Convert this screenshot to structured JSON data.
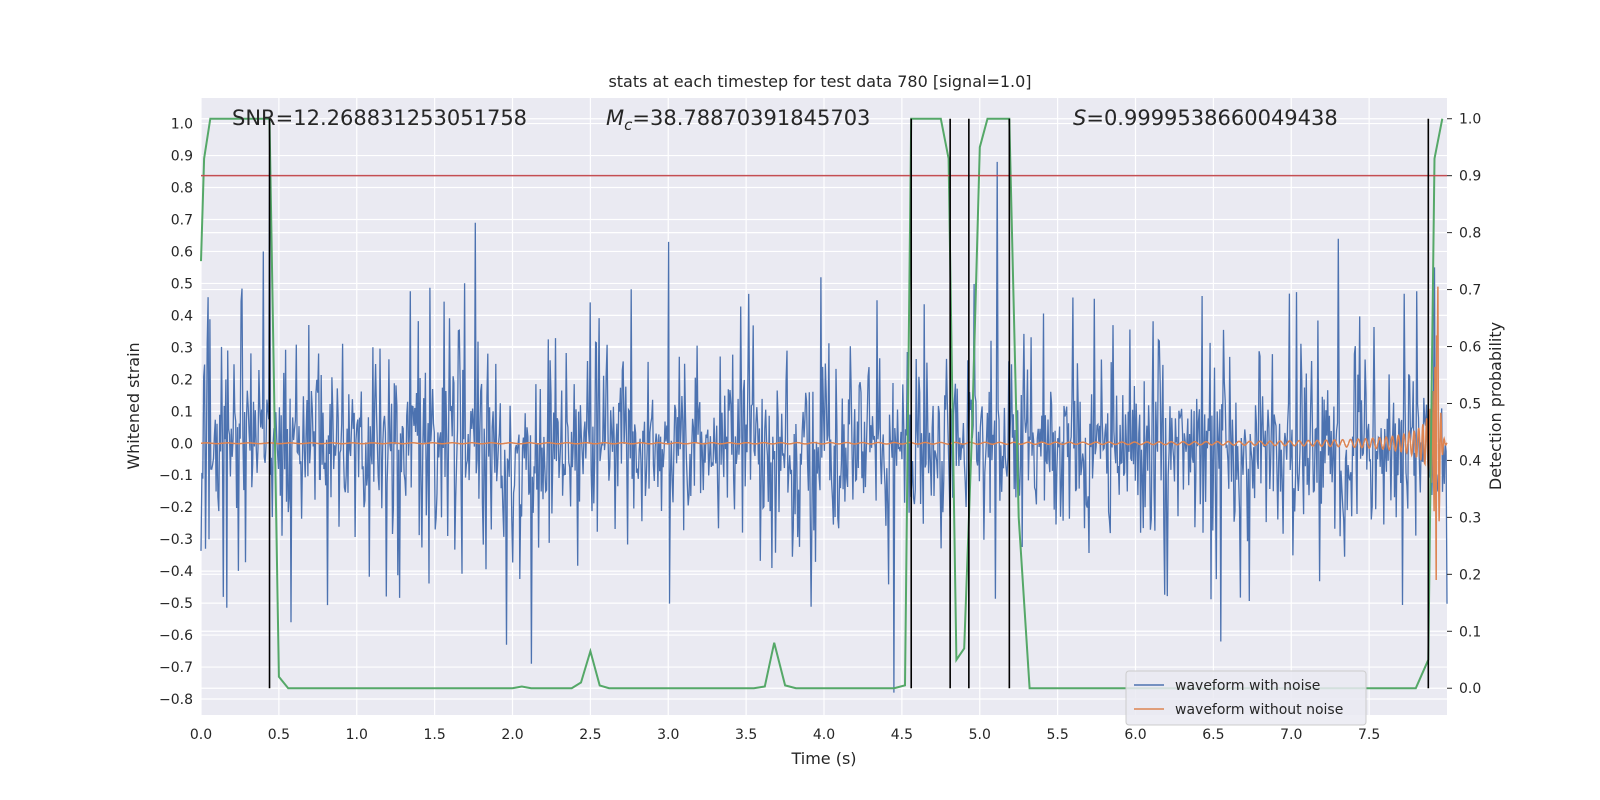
{
  "chart_data": {
    "type": "line",
    "title": "stats at each timestep for test data 780 [signal=1.0]",
    "xlabel": "Time (s)",
    "ylabel": "Whitened strain",
    "ylabel_right": "Detection probability",
    "xlim": [
      0.0,
      8.0
    ],
    "ylim": [
      -0.85,
      1.08
    ],
    "ylim_right": [
      -0.047,
      1.0364
    ],
    "xticks": [
      0.0,
      0.5,
      1.0,
      1.5,
      2.0,
      2.5,
      3.0,
      3.5,
      4.0,
      4.5,
      5.0,
      5.5,
      6.0,
      6.5,
      7.0,
      7.5
    ],
    "xtick_labels": [
      "0.0",
      "0.5",
      "1.0",
      "1.5",
      "2.0",
      "2.5",
      "3.0",
      "3.5",
      "4.0",
      "4.5",
      "5.0",
      "5.5",
      "6.0",
      "6.5",
      "7.0",
      "7.5"
    ],
    "yticks": [
      -0.8,
      -0.7,
      -0.6,
      -0.5,
      -0.4,
      -0.3,
      -0.2,
      -0.1,
      0.0,
      0.1,
      0.2,
      0.3,
      0.4,
      0.5,
      0.6,
      0.7,
      0.8,
      0.9,
      1.0
    ],
    "ytick_labels": [
      "−0.8",
      "−0.7",
      "−0.6",
      "−0.5",
      "−0.4",
      "−0.3",
      "−0.2",
      "−0.1",
      "0.0",
      "0.1",
      "0.2",
      "0.3",
      "0.4",
      "0.5",
      "0.6",
      "0.7",
      "0.8",
      "0.9",
      "1.0"
    ],
    "yticks_right": [
      0.0,
      0.1,
      0.2,
      0.3,
      0.4,
      0.5,
      0.6,
      0.7,
      0.8,
      0.9,
      1.0
    ],
    "ytick_labels_right": [
      "0.0",
      "0.1",
      "0.2",
      "0.3",
      "0.4",
      "0.5",
      "0.6",
      "0.7",
      "0.8",
      "0.9",
      "1.0"
    ],
    "annotations": {
      "snr": "SNR=12.268831253051758",
      "mc_symbol": "M",
      "mc_sub": "c",
      "mc_value": "=38.78870391845703",
      "s_symbol": "S",
      "s_value": "=0.9999538660049438"
    },
    "threshold": {
      "value": 0.9,
      "axis": "right",
      "color": "#c44e52"
    },
    "vertical_lines_x": [
      0.44,
      4.56,
      4.81,
      4.93,
      5.19,
      7.88
    ],
    "detection_probability": {
      "name": "detection probability",
      "color": "#55a868",
      "x": [
        0.0,
        0.02,
        0.06,
        0.1,
        0.44,
        0.5,
        0.56,
        0.6,
        2.0,
        2.06,
        2.12,
        2.38,
        2.44,
        2.5,
        2.56,
        2.62,
        3.55,
        3.62,
        3.68,
        3.75,
        3.82,
        4.45,
        4.52,
        4.56,
        4.63,
        4.68,
        4.75,
        4.8,
        4.85,
        4.9,
        4.95,
        5.0,
        5.05,
        5.1,
        5.19,
        5.25,
        5.32,
        7.8,
        7.88,
        7.92,
        7.97
      ],
      "y": [
        0.75,
        0.93,
        1.0,
        1.0,
        1.0,
        0.02,
        0.0,
        0.0,
        0.0,
        0.003,
        0.0,
        0.0,
        0.01,
        0.065,
        0.005,
        0.0,
        0.0,
        0.003,
        0.08,
        0.005,
        0.0,
        0.0,
        0.005,
        1.0,
        1.0,
        1.0,
        1.0,
        0.93,
        0.05,
        0.07,
        0.45,
        0.95,
        1.0,
        1.0,
        1.0,
        0.3,
        0.0,
        0.0,
        0.05,
        0.93,
        1.0
      ]
    },
    "series": [
      {
        "name": "waveform with noise",
        "color": "#4c72b0",
        "noise_sigma": 0.13,
        "sample_count": 1400
      },
      {
        "name": "waveform without noise",
        "color": "#dd8452",
        "chirp_envelope_peak": 0.6,
        "chirp_merger_time": 7.94
      }
    ],
    "spikes": [
      {
        "x": 0.4,
        "y": 0.6
      },
      {
        "x": 0.44,
        "y": 0.85
      },
      {
        "x": 0.58,
        "y": -0.56
      },
      {
        "x": 1.76,
        "y": 0.69
      },
      {
        "x": 1.96,
        "y": -0.63
      },
      {
        "x": 2.12,
        "y": -0.69
      },
      {
        "x": 3.0,
        "y": 0.63
      },
      {
        "x": 4.45,
        "y": -0.78
      },
      {
        "x": 5.11,
        "y": 0.88
      },
      {
        "x": 6.55,
        "y": -0.62
      },
      {
        "x": 7.3,
        "y": 0.64
      },
      {
        "x": 7.92,
        "y": 0.55
      }
    ],
    "legend": {
      "location": "lower right",
      "entries": [
        "waveform with noise",
        "waveform without noise"
      ]
    },
    "grid": true,
    "background": "#eaeaf2"
  }
}
